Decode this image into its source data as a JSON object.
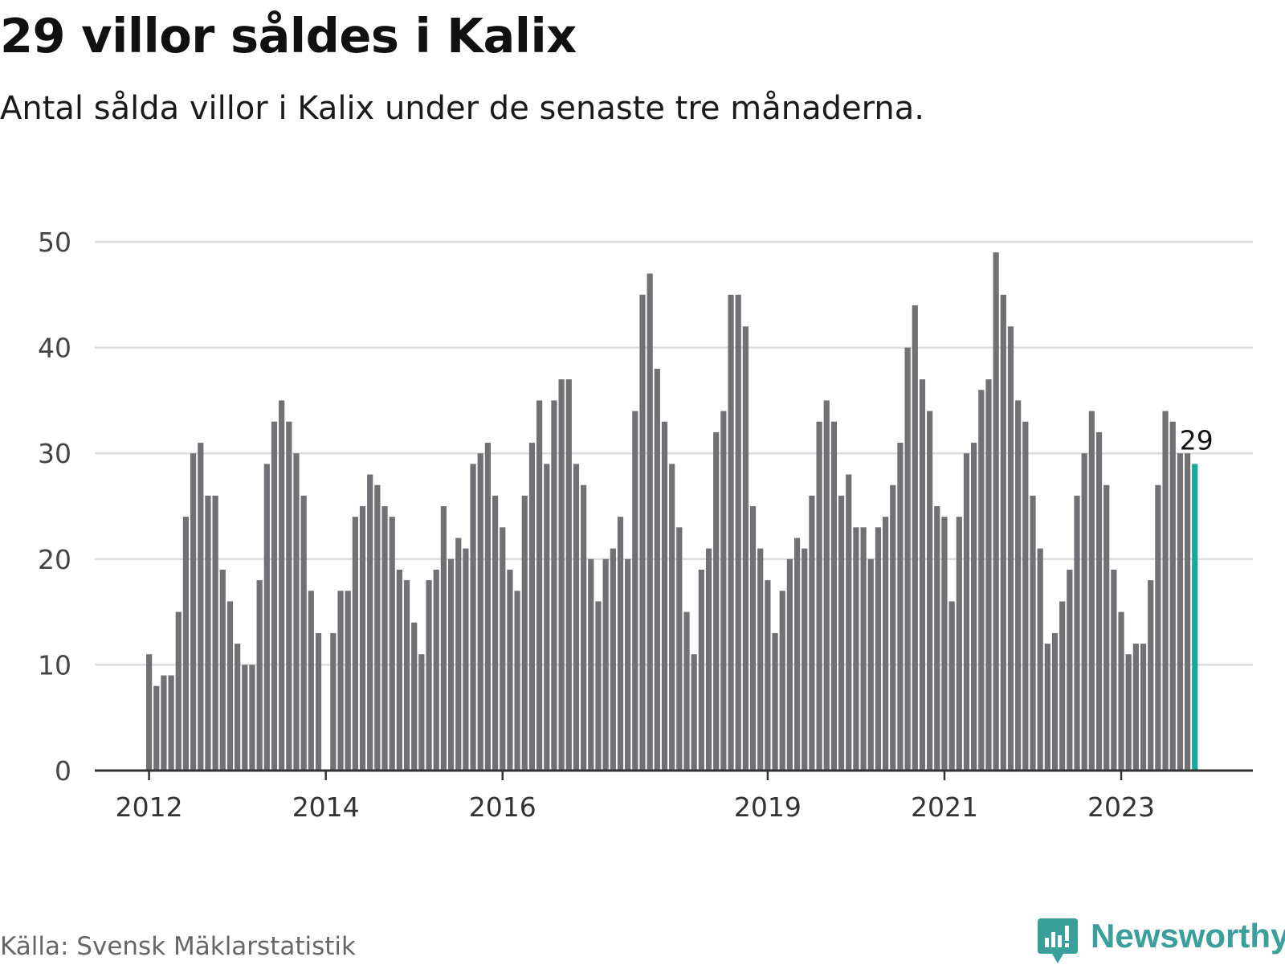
{
  "header": {
    "title": "29 villor såldes i Kalix",
    "subtitle": "Antal sålda villor i Kalix under de senaste tre månaderna."
  },
  "footer": {
    "source": "Källa: Svensk Mäklarstatistik",
    "brand": "Newsworthy",
    "brand_icon": "newsworthy-logo-icon"
  },
  "colors": {
    "bar": "#707075",
    "highlight": "#1aa69a",
    "grid": "#dddddd",
    "axis": "#333333",
    "brand": "#3a9e9a"
  },
  "chart_data": {
    "type": "bar",
    "title": "29 villor såldes i Kalix",
    "xlabel": "",
    "ylabel": "",
    "ylim": [
      0,
      50
    ],
    "yticks": [
      0,
      10,
      20,
      30,
      40,
      50
    ],
    "grid": true,
    "xtick_labels": [
      {
        "label": "2012",
        "index": 0
      },
      {
        "label": "2014",
        "index": 24
      },
      {
        "label": "2016",
        "index": 48
      },
      {
        "label": "2019",
        "index": 84
      },
      {
        "label": "2021",
        "index": 108
      },
      {
        "label": "2023",
        "index": 132
      }
    ],
    "series": [
      {
        "name": "Antal sålda villor (rullande tre månader)",
        "values": [
          11,
          8,
          9,
          9,
          15,
          24,
          30,
          31,
          26,
          26,
          19,
          16,
          12,
          10,
          10,
          18,
          29,
          33,
          35,
          33,
          30,
          26,
          17,
          13,
          0,
          13,
          17,
          17,
          24,
          25,
          28,
          27,
          25,
          24,
          19,
          18,
          14,
          11,
          18,
          19,
          25,
          20,
          22,
          21,
          29,
          30,
          31,
          26,
          23,
          19,
          17,
          26,
          31,
          35,
          29,
          35,
          37,
          37,
          29,
          27,
          20,
          16,
          20,
          21,
          24,
          20,
          34,
          45,
          47,
          38,
          33,
          29,
          23,
          15,
          11,
          19,
          21,
          32,
          34,
          45,
          45,
          42,
          25,
          21,
          18,
          13,
          17,
          20,
          22,
          21,
          26,
          33,
          35,
          33,
          26,
          28,
          23,
          23,
          20,
          23,
          24,
          27,
          31,
          40,
          44,
          37,
          34,
          25,
          24,
          16,
          24,
          30,
          31,
          36,
          37,
          49,
          45,
          42,
          35,
          33,
          26,
          21,
          12,
          13,
          16,
          19,
          26,
          30,
          34,
          32,
          27,
          19,
          15,
          11,
          12,
          12,
          18,
          27,
          34,
          33,
          30,
          30,
          29
        ]
      }
    ],
    "highlight_index": 142,
    "annotation": {
      "label": "29",
      "index": 142
    }
  }
}
